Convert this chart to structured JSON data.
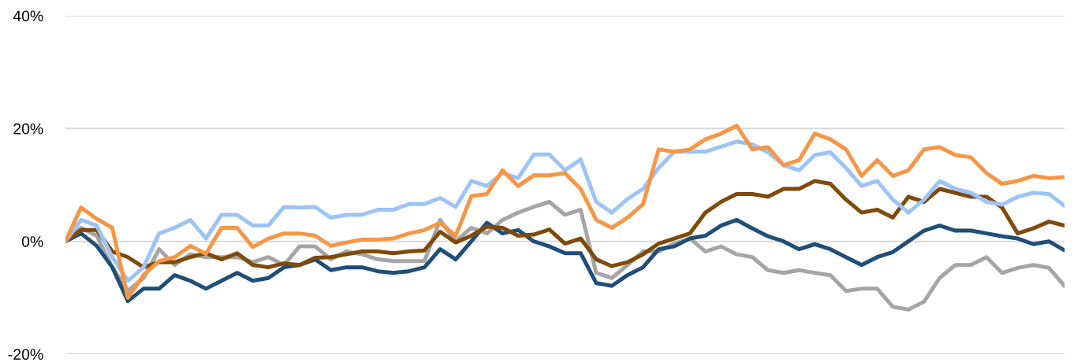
{
  "chart_data": {
    "type": "line",
    "categories": [
      null,
      null,
      null,
      null,
      null,
      null,
      null,
      null,
      null,
      null,
      null,
      null,
      null,
      null,
      null,
      null,
      null,
      null,
      null,
      null,
      null,
      null,
      null,
      null,
      null,
      null,
      null,
      null,
      null,
      null,
      null,
      null,
      null,
      null,
      null,
      null,
      null,
      null,
      null,
      null,
      null,
      null,
      null,
      null,
      null,
      null,
      null,
      null,
      null,
      null,
      null,
      null,
      null,
      null,
      null,
      null,
      null,
      null,
      null,
      null,
      null,
      null,
      null,
      null,
      null
    ],
    "series": [
      {
        "color": "#a5a5a5",
        "values": [
          0,
          2.4,
          1,
          -4.6,
          -8.8,
          -6.5,
          -1.4,
          -4.2,
          -2.3,
          -2.8,
          -2.8,
          -2.8,
          -3.7,
          -2.8,
          -4.2,
          -0.9,
          -0.9,
          -3.2,
          -1.8,
          -2.3,
          -3.2,
          -3.5,
          -3.5,
          -3.5,
          3.8,
          0,
          2.4,
          1.4,
          3.8,
          5.1,
          6.1,
          7,
          4.7,
          5.6,
          -5.6,
          -6.5,
          -4.2,
          -1.8,
          -1.8,
          -0.4,
          0.5,
          -1.8,
          -0.9,
          -2.3,
          -2.8,
          -5.1,
          -5.6,
          -5.1,
          -5.6,
          -6,
          -8.8,
          -8.4,
          -8.4,
          -11.6,
          -12.1,
          -10.7,
          -6.5,
          -4.2,
          -4.2,
          -2.8,
          -5.6,
          -4.7,
          -4.2,
          -4.7,
          -7.9
        ]
      },
      {
        "color": "#1f4e79",
        "values": [
          0,
          1.4,
          -0.8,
          -4.6,
          -10.6,
          -8.4,
          -8.4,
          -6,
          -7,
          -8.4,
          -7,
          -5.6,
          -7,
          -6.5,
          -4.6,
          -4.2,
          -3.2,
          -5.1,
          -4.6,
          -4.6,
          -5.3,
          -5.6,
          -5.3,
          -4.6,
          -1.4,
          -3.2,
          0,
          3.3,
          1.4,
          2,
          0,
          -0.9,
          -2.1,
          -2.1,
          -7.4,
          -7.9,
          -6,
          -4.6,
          -1.4,
          -0.9,
          0.5,
          1,
          2.8,
          3.8,
          2.3,
          0.9,
          0,
          -1.4,
          -0.5,
          -1.4,
          -2.8,
          -4.2,
          -2.8,
          -1.9,
          0,
          1.9,
          2.8,
          1.9,
          1.9,
          1.4,
          0.9,
          0.5,
          -0.5,
          0,
          -1.6
        ]
      },
      {
        "color": "#7f4a0a",
        "values": [
          0,
          2,
          2,
          -1.8,
          -2.8,
          -4.6,
          -3.7,
          -3.7,
          -2.8,
          -2.1,
          -3.2,
          -2.1,
          -4.2,
          -4.6,
          -3.9,
          -4.2,
          -2.9,
          -2.8,
          -2.3,
          -1.8,
          -1.8,
          -2.1,
          -1.8,
          -1.6,
          1.7,
          -0.2,
          1,
          2.6,
          2.4,
          1,
          1.2,
          2.1,
          -0.4,
          0.5,
          -3.2,
          -4.4,
          -3.7,
          -2.3,
          -0.4,
          0.5,
          1.4,
          5.1,
          7,
          8.4,
          8.4,
          7.9,
          9.3,
          9.3,
          10.7,
          10.2,
          7.4,
          5.1,
          5.6,
          4.2,
          7.9,
          7,
          9.3,
          8.6,
          7.9,
          7.9,
          6,
          1.4,
          2.3,
          3.5,
          2.8
        ]
      },
      {
        "color": "#9dc3f7",
        "values": [
          0,
          3.8,
          2.8,
          -2.8,
          -7,
          -4.6,
          1.4,
          2.4,
          3.8,
          0.5,
          4.7,
          4.7,
          2.8,
          2.8,
          6.1,
          6,
          6.1,
          4.2,
          4.7,
          4.7,
          5.6,
          5.6,
          6.6,
          6.6,
          7.7,
          6.1,
          10.7,
          9.8,
          12.1,
          11.2,
          15.4,
          15.4,
          12.6,
          14.5,
          7,
          5.1,
          7.5,
          9.3,
          13,
          15.9,
          15.9,
          15.9,
          16.8,
          17.7,
          17.2,
          15.8,
          13.5,
          12.6,
          15.3,
          15.8,
          13,
          9.8,
          10.7,
          7.4,
          5.1,
          7.4,
          10.7,
          9.3,
          8.6,
          7,
          6.5,
          7.9,
          8.6,
          8.4,
          6.3
        ]
      },
      {
        "color": "#f79646",
        "values": [
          0,
          6,
          4,
          2.4,
          -10,
          -6,
          -3.5,
          -2.8,
          -0.8,
          -2.2,
          2.4,
          2.4,
          -1,
          0.5,
          1.4,
          1.4,
          1,
          -0.8,
          -0.2,
          0.3,
          0.3,
          0.5,
          1.4,
          2,
          3.3,
          1,
          8,
          8.4,
          12.6,
          9.8,
          11.7,
          11.7,
          12.1,
          9.3,
          3.8,
          2.4,
          4.2,
          6.6,
          16.3,
          15.9,
          16.3,
          18.1,
          19.1,
          20.5,
          16.3,
          16.7,
          13.5,
          14.4,
          19.1,
          18.1,
          16.3,
          11.6,
          14.4,
          11.6,
          12.6,
          16.3,
          16.7,
          15.3,
          14.9,
          12.1,
          10.2,
          10.7,
          11.6,
          11.2,
          11.4
        ]
      }
    ],
    "ylim": [
      -20,
      40
    ],
    "yticks": [
      {
        "value": -20,
        "label": "-20%"
      },
      {
        "value": 0,
        "label": "0%"
      },
      {
        "value": 20,
        "label": "20%"
      },
      {
        "value": 40,
        "label": "40%"
      }
    ],
    "grid": "y",
    "tick_labels": "y",
    "legend": false,
    "marker": "none",
    "line_style": "solid"
  }
}
